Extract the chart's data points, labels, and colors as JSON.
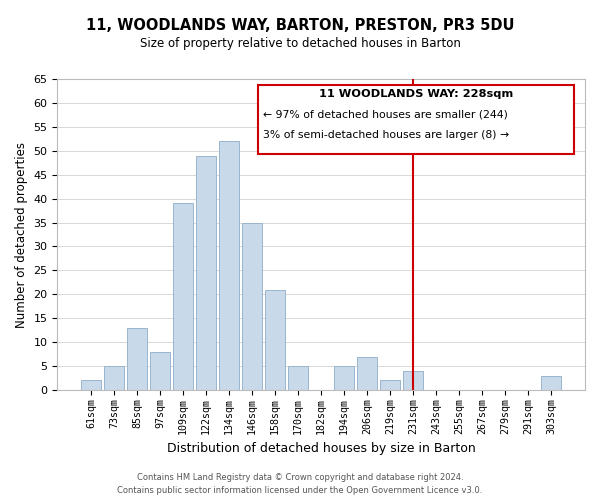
{
  "title": "11, WOODLANDS WAY, BARTON, PRESTON, PR3 5DU",
  "subtitle": "Size of property relative to detached houses in Barton",
  "xlabel": "Distribution of detached houses by size in Barton",
  "ylabel": "Number of detached properties",
  "bar_labels": [
    "61sqm",
    "73sqm",
    "85sqm",
    "97sqm",
    "109sqm",
    "122sqm",
    "134sqm",
    "146sqm",
    "158sqm",
    "170sqm",
    "182sqm",
    "194sqm",
    "206sqm",
    "219sqm",
    "231sqm",
    "243sqm",
    "255sqm",
    "267sqm",
    "279sqm",
    "291sqm",
    "303sqm"
  ],
  "bar_values": [
    2,
    5,
    13,
    8,
    39,
    49,
    52,
    35,
    21,
    5,
    0,
    5,
    7,
    2,
    4,
    0,
    0,
    0,
    0,
    0,
    3
  ],
  "bar_color": "#c8d9ea",
  "bar_edge_color": "#9ab5cc",
  "grid_color": "#d8d8d8",
  "vline_index": 14,
  "vline_color": "#cc0000",
  "annotation_title": "11 WOODLANDS WAY: 228sqm",
  "annotation_line1": "← 97% of detached houses are smaller (244)",
  "annotation_line2": "3% of semi-detached houses are larger (8) →",
  "annotation_box_color": "#ffffff",
  "annotation_border_color": "#cc0000",
  "footer_line1": "Contains HM Land Registry data © Crown copyright and database right 2024.",
  "footer_line2": "Contains public sector information licensed under the Open Government Licence v3.0.",
  "ylim": [
    0,
    65
  ],
  "yticks": [
    0,
    5,
    10,
    15,
    20,
    25,
    30,
    35,
    40,
    45,
    50,
    55,
    60,
    65
  ]
}
